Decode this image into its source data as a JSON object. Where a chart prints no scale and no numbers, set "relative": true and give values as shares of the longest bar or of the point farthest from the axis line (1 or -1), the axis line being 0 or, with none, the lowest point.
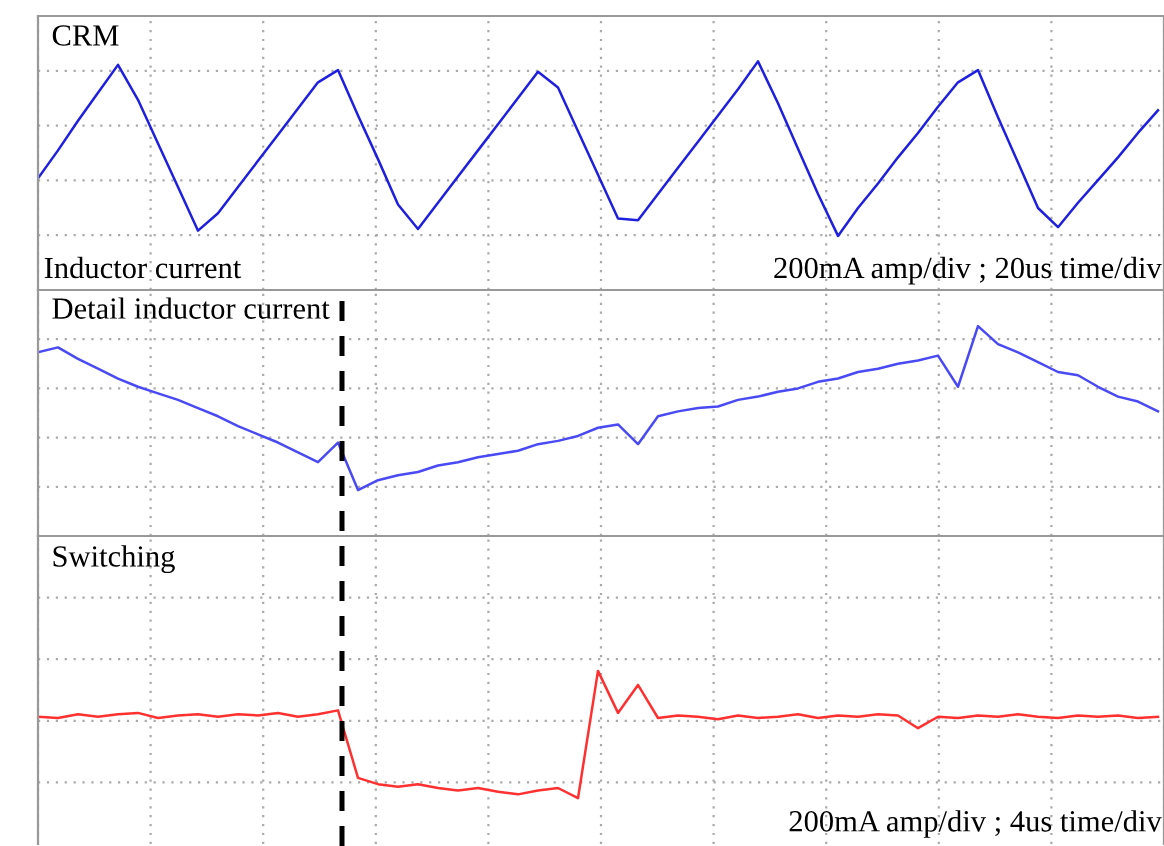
{
  "chart_data": [
    {
      "type": "line",
      "relative": true,
      "title": "CRM",
      "grid": true,
      "categories": [
        null,
        null,
        null,
        null,
        null,
        null,
        null,
        null,
        null,
        null,
        null,
        null,
        null,
        null,
        null,
        null,
        null,
        null,
        null,
        null,
        null,
        null,
        null,
        null,
        null,
        null,
        null,
        null,
        null,
        null,
        null,
        null,
        null,
        null,
        null,
        null,
        null,
        null,
        null,
        null,
        null,
        null,
        null,
        null,
        null,
        null,
        null,
        null,
        null,
        null,
        null,
        null,
        null,
        null,
        null,
        null,
        null
      ],
      "series": [
        {
          "color": "#1f1fe0",
          "values": [
            0.33,
            0.49,
            0.66,
            0.82,
            0.98,
            0.78,
            0.53,
            0.28,
            0.03,
            0.13,
            0.28,
            0.43,
            0.58,
            0.73,
            0.88,
            0.95,
            0.69,
            0.44,
            0.18,
            0.04,
            0.19,
            0.34,
            0.49,
            0.64,
            0.79,
            0.94,
            0.85,
            0.6,
            0.35,
            0.1,
            0.09,
            0.24,
            0.39,
            0.54,
            0.69,
            0.84,
            1.0,
            0.76,
            0.5,
            0.24,
            0.0,
            0.16,
            0.3,
            0.45,
            0.59,
            0.74,
            0.88,
            0.95,
            0.68,
            0.42,
            0.16,
            0.05,
            0.19,
            0.32,
            0.45,
            0.59,
            0.72
          ]
        }
      ],
      "annotations": [
        "Inductor current",
        "200mA amp/div ; 20us time/div"
      ]
    },
    {
      "type": "line",
      "relative": true,
      "title": "Detail inductor current",
      "grid": true,
      "categories": [
        null,
        null,
        null,
        null,
        null,
        null,
        null,
        null,
        null,
        null,
        null,
        null,
        null,
        null,
        null,
        null,
        null,
        null,
        null,
        null,
        null,
        null,
        null,
        null,
        null,
        null,
        null,
        null,
        null,
        null,
        null,
        null,
        null,
        null,
        null,
        null,
        null,
        null,
        null,
        null,
        null,
        null,
        null,
        null,
        null,
        null,
        null,
        null,
        null,
        null,
        null,
        null,
        null,
        null,
        null,
        null,
        null
      ],
      "series": [
        {
          "color": "#4a4af5",
          "values": [
            0.84,
            0.87,
            0.8,
            0.74,
            0.68,
            0.63,
            0.59,
            0.55,
            0.5,
            0.45,
            0.39,
            0.34,
            0.29,
            0.23,
            0.17,
            0.29,
            0.0,
            0.06,
            0.09,
            0.11,
            0.15,
            0.17,
            0.2,
            0.22,
            0.24,
            0.28,
            0.3,
            0.33,
            0.38,
            0.4,
            0.28,
            0.45,
            0.48,
            0.5,
            0.51,
            0.55,
            0.57,
            0.6,
            0.62,
            0.66,
            0.68,
            0.72,
            0.74,
            0.77,
            0.79,
            0.82,
            0.63,
            1.0,
            0.89,
            0.84,
            0.78,
            0.72,
            0.7,
            0.63,
            0.57,
            0.54,
            0.48
          ]
        }
      ]
    },
    {
      "type": "line",
      "relative": true,
      "title": "Switching",
      "grid": true,
      "categories": [
        null,
        null,
        null,
        null,
        null,
        null,
        null,
        null,
        null,
        null,
        null,
        null,
        null,
        null,
        null,
        null,
        null,
        null,
        null,
        null,
        null,
        null,
        null,
        null,
        null,
        null,
        null,
        null,
        null,
        null,
        null,
        null,
        null,
        null,
        null,
        null,
        null,
        null,
        null,
        null,
        null,
        null,
        null,
        null,
        null,
        null,
        null,
        null,
        null,
        null,
        null,
        null,
        null,
        null,
        null,
        null,
        null
      ],
      "series": [
        {
          "color": "#ff3030",
          "values": [
            0.64,
            0.63,
            0.66,
            0.64,
            0.66,
            0.67,
            0.63,
            0.65,
            0.66,
            0.64,
            0.66,
            0.65,
            0.67,
            0.64,
            0.66,
            0.69,
            0.16,
            0.11,
            0.09,
            0.11,
            0.08,
            0.06,
            0.08,
            0.05,
            0.03,
            0.06,
            0.08,
            0.0,
            1.0,
            0.67,
            0.89,
            0.63,
            0.65,
            0.64,
            0.62,
            0.65,
            0.63,
            0.64,
            0.66,
            0.63,
            0.65,
            0.64,
            0.66,
            0.65,
            0.55,
            0.64,
            0.63,
            0.65,
            0.64,
            0.66,
            0.64,
            0.63,
            0.65,
            0.64,
            0.65,
            0.63,
            0.64
          ]
        }
      ],
      "annotations": [
        "200mA amp/div ; 4us time/div"
      ]
    }
  ]
}
